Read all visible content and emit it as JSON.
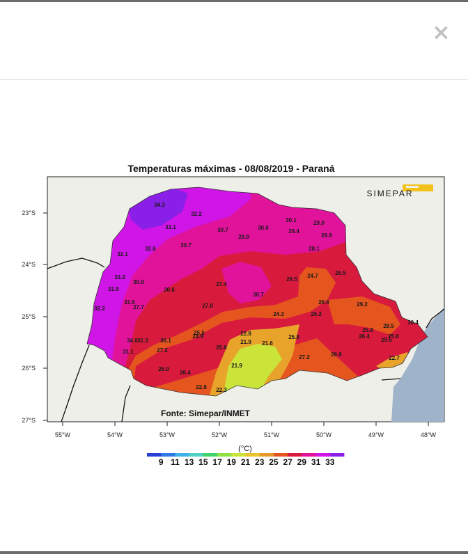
{
  "modal": {
    "close_symbol": "×"
  },
  "map": {
    "title": "Temperaturas máximas - 08/08/2019 - Paraná",
    "source": "Fonte: Simepar/INMET",
    "logo_text": "SIMEPAR",
    "lat_labels": [
      "23°S",
      "24°S",
      "25°S",
      "26°S",
      "27°S"
    ],
    "lon_labels": [
      "55°W",
      "54°W",
      "53°W",
      "52°W",
      "51°W",
      "50°W",
      "49°W",
      "48°W"
    ],
    "colorbar": {
      "unit": "(°C)",
      "tick_labels": [
        "9",
        "11",
        "13",
        "15",
        "17",
        "19",
        "21",
        "23",
        "25",
        "27",
        "29",
        "31",
        "33"
      ],
      "colors": [
        "#2b3fd6",
        "#2f78e6",
        "#3fb0e8",
        "#4fd2c2",
        "#3fd46a",
        "#8fe042",
        "#cbe43a",
        "#e8c22f",
        "#e89a28",
        "#e5561f",
        "#d81a3d",
        "#e0139a",
        "#cf16e6",
        "#8a1fe8"
      ]
    },
    "station_values": [
      {
        "t": "34.3"
      },
      {
        "t": "32.2"
      },
      {
        "t": "33.1"
      },
      {
        "t": "30.7"
      },
      {
        "t": "30.0"
      },
      {
        "t": "30.1"
      },
      {
        "t": "29.0"
      },
      {
        "t": "29.4"
      },
      {
        "t": "29.9"
      },
      {
        "t": "28.8"
      },
      {
        "t": "32.6"
      },
      {
        "t": "30.7"
      },
      {
        "t": "28.1"
      },
      {
        "t": "32.1"
      },
      {
        "t": "33.2"
      },
      {
        "t": "30.9"
      },
      {
        "t": "31.9"
      },
      {
        "t": "30.6"
      },
      {
        "t": "27.4"
      },
      {
        "t": "29.5"
      },
      {
        "t": "24.7"
      },
      {
        "t": "26.5"
      },
      {
        "t": "30.7"
      },
      {
        "t": "31.6"
      },
      {
        "t": "27.7"
      },
      {
        "t": "32.2"
      },
      {
        "t": "27.8"
      },
      {
        "t": "26.9"
      },
      {
        "t": "29.2"
      },
      {
        "t": "24.3"
      },
      {
        "t": "25.2"
      },
      {
        "t": "28.5"
      },
      {
        "t": "30.4"
      },
      {
        "t": "25.8"
      },
      {
        "t": "26.4"
      },
      {
        "t": "25.6"
      },
      {
        "t": "29.5"
      },
      {
        "t": "25.5"
      },
      {
        "t": "24.9"
      },
      {
        "t": "34.0"
      },
      {
        "t": "31.3"
      },
      {
        "t": "30.1"
      },
      {
        "t": "22.8"
      },
      {
        "t": "21.9"
      },
      {
        "t": "21.6"
      },
      {
        "t": "25.8"
      },
      {
        "t": "25.6"
      },
      {
        "t": "31.1"
      },
      {
        "t": "27.2"
      },
      {
        "t": "27.2"
      },
      {
        "t": "26.6"
      },
      {
        "t": "22.7"
      },
      {
        "t": "21.9"
      },
      {
        "t": "26.9"
      },
      {
        "t": "26.4"
      },
      {
        "t": "22.8"
      },
      {
        "t": "22.3"
      }
    ]
  }
}
